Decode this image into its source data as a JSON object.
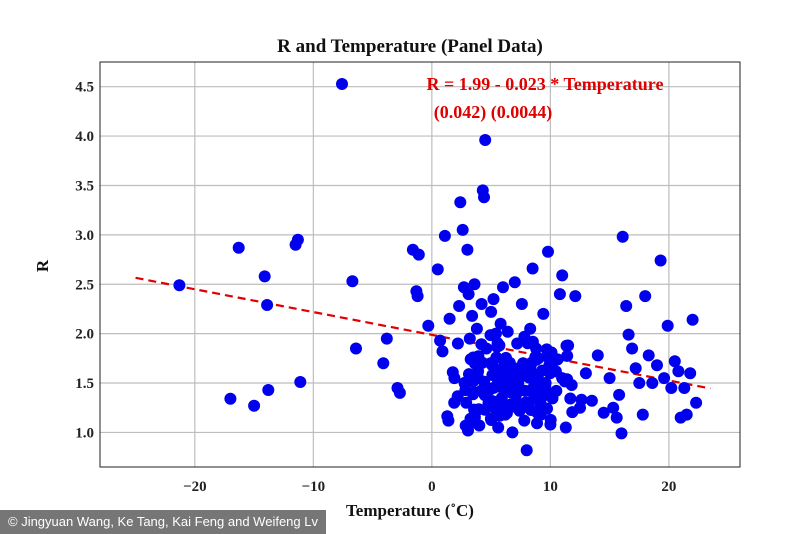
{
  "chart_data": {
    "type": "scatter",
    "title": "R and Temperature (Panel Data)",
    "xlabel": "Temperature (˚C)",
    "ylabel": "R",
    "xlim": [
      -28,
      26
    ],
    "ylim": [
      0.65,
      4.75
    ],
    "xticks": [
      -20,
      -10,
      0,
      10,
      20
    ],
    "xtick_labels": [
      "−20",
      "−10",
      "0",
      "10",
      "20"
    ],
    "yticks": [
      1.0,
      1.5,
      2.0,
      2.5,
      3.0,
      3.5,
      4.0,
      4.5
    ],
    "ytick_labels": [
      "1.0",
      "1.5",
      "2.0",
      "2.5",
      "3.0",
      "3.5",
      "4.0",
      "4.5"
    ],
    "grid": true,
    "legend": "top",
    "point_color": "#0000ee",
    "fit_color": "#e00000",
    "annotation": {
      "equation": "R = 1.99   -   0.023  * Temperature",
      "std_errors": "(0.042)   (0.0044)"
    },
    "fit_line": {
      "x": [
        -25,
        23.5
      ],
      "y": [
        2.565,
        1.445
      ],
      "style": "dashed"
    },
    "points": [
      [
        -21.3,
        2.49
      ],
      [
        -17,
        1.34
      ],
      [
        -16.3,
        2.87
      ],
      [
        -15,
        1.27
      ],
      [
        -14.1,
        2.58
      ],
      [
        -13.9,
        2.29
      ],
      [
        -13.8,
        1.43
      ],
      [
        -11.5,
        2.9
      ],
      [
        -11.3,
        2.95
      ],
      [
        -11.1,
        1.51
      ],
      [
        -6.7,
        2.53
      ],
      [
        -6.4,
        1.85
      ],
      [
        -4.1,
        1.7
      ],
      [
        -3.8,
        1.95
      ],
      [
        -2.9,
        1.45
      ],
      [
        -2.7,
        1.4
      ],
      [
        -1.6,
        2.85
      ],
      [
        -1.3,
        2.43
      ],
      [
        -1.2,
        2.38
      ],
      [
        -1.1,
        2.8
      ],
      [
        -0.3,
        2.08
      ],
      [
        0.5,
        2.65
      ],
      [
        0.7,
        1.93
      ],
      [
        0.9,
        1.82
      ],
      [
        1.1,
        2.99
      ],
      [
        1.4,
        1.12
      ],
      [
        1.5,
        2.15
      ],
      [
        1.9,
        1.55
      ],
      [
        2.2,
        1.9
      ],
      [
        2.3,
        2.28
      ],
      [
        2.4,
        3.33
      ],
      [
        2.6,
        3.05
      ],
      [
        2.7,
        2.47
      ],
      [
        2.8,
        1.49
      ],
      [
        2.9,
        1.3
      ],
      [
        3.0,
        2.85
      ],
      [
        3.1,
        2.4
      ],
      [
        3.2,
        1.95
      ],
      [
        3.4,
        2.18
      ],
      [
        3.5,
        1.75
      ],
      [
        3.6,
        2.5
      ],
      [
        3.8,
        2.05
      ],
      [
        3.9,
        1.62
      ],
      [
        4.0,
        1.07
      ],
      [
        4.2,
        2.3
      ],
      [
        4.3,
        3.45
      ],
      [
        4.4,
        3.38
      ],
      [
        4.5,
        3.96
      ],
      [
        4.6,
        1.85
      ],
      [
        4.8,
        1.42
      ],
      [
        5.0,
        2.22
      ],
      [
        5.1,
        1.68
      ],
      [
        5.2,
        2.35
      ],
      [
        5.3,
        1.25
      ],
      [
        5.4,
        2.0
      ],
      [
        5.5,
        1.55
      ],
      [
        5.6,
        1.05
      ],
      [
        5.7,
        1.88
      ],
      [
        5.8,
        2.1
      ],
      [
        5.9,
        1.35
      ],
      [
        6.0,
        2.47
      ],
      [
        6.1,
        1.72
      ],
      [
        6.2,
        1.18
      ],
      [
        6.3,
        1.6
      ],
      [
        6.4,
        2.02
      ],
      [
        6.5,
        1.45
      ],
      [
        6.6,
        1.28
      ],
      [
        6.7,
        1.52
      ],
      [
        6.8,
        1.0
      ],
      [
        6.9,
        1.65
      ],
      [
        7.0,
        2.52
      ],
      [
        7.1,
        1.38
      ],
      [
        7.2,
        1.9
      ],
      [
        7.3,
        1.48
      ],
      [
        7.4,
        1.22
      ],
      [
        7.5,
        1.58
      ],
      [
        7.6,
        2.3
      ],
      [
        7.7,
        1.7
      ],
      [
        7.8,
        1.12
      ],
      [
        7.9,
        1.42
      ],
      [
        8.0,
        0.82
      ],
      [
        8.1,
        1.62
      ],
      [
        8.2,
        1.3
      ],
      [
        8.3,
        2.05
      ],
      [
        8.4,
        1.55
      ],
      [
        8.5,
        2.66
      ],
      [
        8.6,
        1.45
      ],
      [
        8.8,
        1.85
      ],
      [
        8.9,
        1.2
      ],
      [
        9.0,
        1.75
      ],
      [
        9.2,
        1.38
      ],
      [
        9.4,
        2.2
      ],
      [
        9.6,
        1.5
      ],
      [
        9.8,
        2.83
      ],
      [
        10.0,
        1.08
      ],
      [
        10.2,
        1.65
      ],
      [
        10.5,
        1.42
      ],
      [
        10.8,
        2.4
      ],
      [
        11.0,
        2.59
      ],
      [
        11.3,
        1.05
      ],
      [
        11.5,
        1.88
      ],
      [
        11.8,
        1.48
      ],
      [
        12.1,
        2.38
      ],
      [
        12.5,
        1.25
      ],
      [
        13.0,
        1.6
      ],
      [
        13.5,
        1.32
      ],
      [
        14.0,
        1.78
      ],
      [
        14.5,
        1.2
      ],
      [
        15.0,
        1.55
      ],
      [
        15.3,
        1.25
      ],
      [
        15.6,
        1.15
      ],
      [
        15.8,
        1.38
      ],
      [
        16.0,
        0.99
      ],
      [
        16.1,
        2.98
      ],
      [
        16.4,
        2.28
      ],
      [
        16.6,
        1.99
      ],
      [
        16.9,
        1.85
      ],
      [
        17.2,
        1.65
      ],
      [
        17.5,
        1.5
      ],
      [
        17.8,
        1.18
      ],
      [
        18.0,
        2.38
      ],
      [
        18.3,
        1.78
      ],
      [
        18.6,
        1.5
      ],
      [
        19.0,
        1.68
      ],
      [
        19.3,
        2.74
      ],
      [
        19.6,
        1.55
      ],
      [
        19.9,
        2.08
      ],
      [
        20.2,
        1.45
      ],
      [
        20.5,
        1.72
      ],
      [
        20.8,
        1.62
      ],
      [
        21.0,
        1.15
      ],
      [
        21.3,
        1.45
      ],
      [
        21.5,
        1.18
      ],
      [
        21.8,
        1.6
      ],
      [
        22.0,
        2.14
      ],
      [
        22.3,
        1.3
      ]
    ],
    "cluster_seed": 17,
    "cluster_count": 130,
    "cluster_center": [
      7.0,
      1.5
    ]
  },
  "credit": "© Jingyuan Wang, Ke Tang, Kai Feng and Weifeng Lv"
}
